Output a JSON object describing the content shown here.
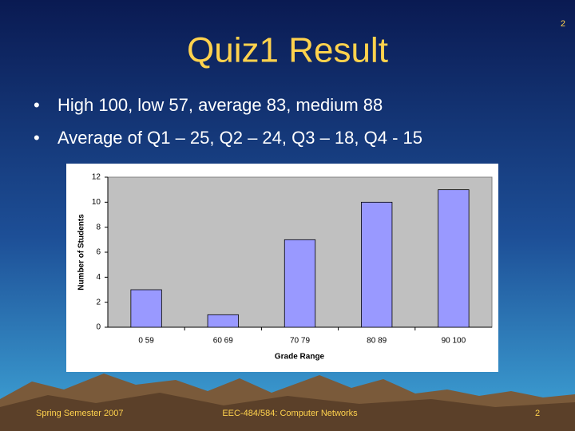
{
  "slide_number": "2",
  "title": "Quiz1 Result",
  "bullets": [
    "High 100, low 57, average 83, medium 88",
    "Average of Q1 – 25, Q2 – 24, Q3 – 18, Q4 - 15"
  ],
  "chart_data": {
    "type": "bar",
    "categories": [
      "0 59",
      "60 69",
      "70 79",
      "80 89",
      "90 100"
    ],
    "values": [
      3,
      1,
      7,
      10,
      11
    ],
    "color": "#9999ff",
    "x_label": "Grade Range",
    "y_label": "Number of Students",
    "ylim": [
      0,
      12
    ],
    "yticks": [
      0,
      2,
      4,
      6,
      8,
      10,
      12
    ],
    "grid": false
  },
  "footer": {
    "left": "Spring Semester 2007",
    "center": "EEC-484/584: Computer Networks",
    "right": "2"
  }
}
